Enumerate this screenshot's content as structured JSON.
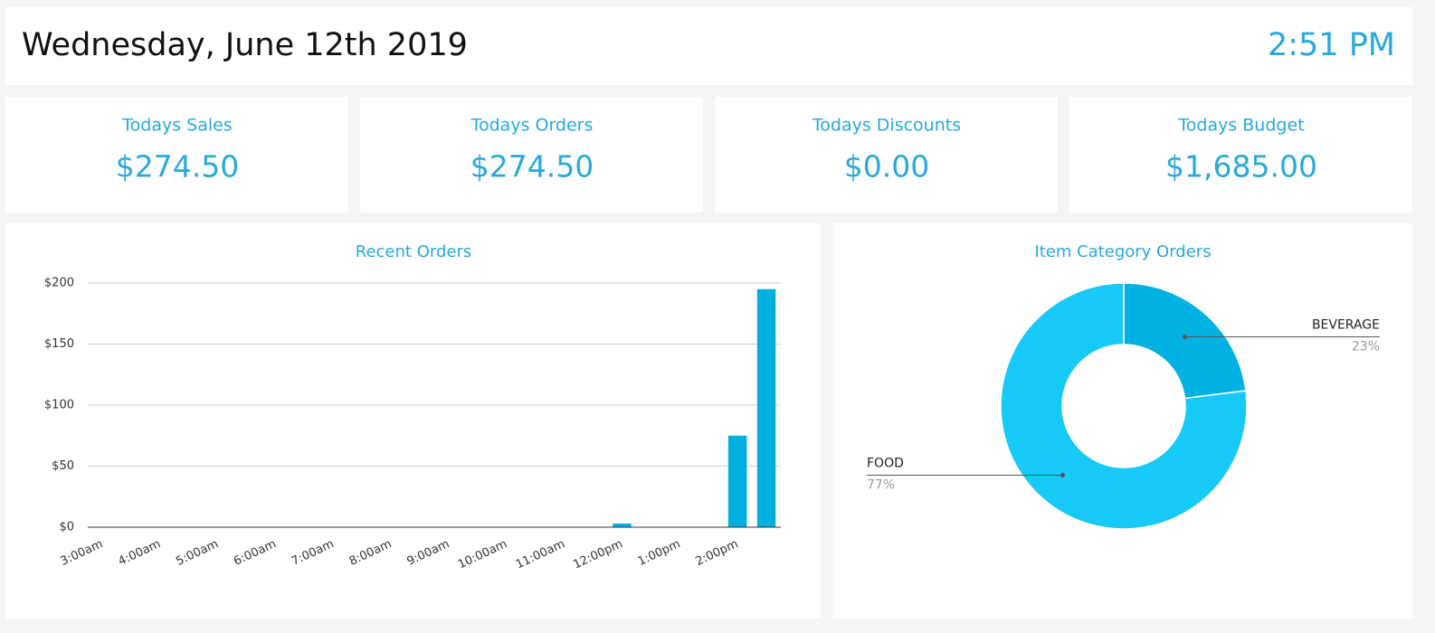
{
  "header": {
    "date": "Wednesday, June 12th 2019",
    "time": "2:51 PM"
  },
  "cards": [
    {
      "label": "Todays Sales",
      "value": "$274.50"
    },
    {
      "label": "Todays Orders",
      "value": "$274.50"
    },
    {
      "label": "Todays Discounts",
      "value": "$0.00"
    },
    {
      "label": "Todays Budget",
      "value": "$1,685.00"
    }
  ],
  "chart_data": [
    {
      "type": "bar",
      "title": "Recent Orders",
      "categories": [
        "3:00am",
        null,
        "4:00am",
        null,
        "5:00am",
        null,
        "6:00am",
        null,
        "7:00am",
        null,
        "8:00am",
        null,
        "9:00am",
        null,
        "10:00am",
        null,
        "11:00am",
        null,
        "12:00pm",
        null,
        "1:00pm",
        null,
        "2:00pm",
        null
      ],
      "values": [
        0,
        0,
        0,
        0,
        0,
        0,
        0,
        0,
        0,
        0,
        0,
        0,
        0,
        0,
        0,
        0,
        0,
        0,
        3,
        0,
        0,
        0,
        75,
        195
      ],
      "color": "#00aee0",
      "ylim": [
        0,
        200
      ],
      "yticks": [
        {
          "value": 0,
          "label": "$0"
        },
        {
          "value": 50,
          "label": "$50"
        },
        {
          "value": 100,
          "label": "$100"
        },
        {
          "value": 150,
          "label": "$150"
        },
        {
          "value": 200,
          "label": "$200"
        }
      ],
      "grid": true
    },
    {
      "type": "pie",
      "title": "Item Category Orders",
      "categories": [
        "BEVERAGE",
        "FOOD"
      ],
      "values": [
        23,
        77
      ],
      "value_labels": [
        "23%",
        "77%"
      ],
      "colors": [
        "#00b1e1",
        "#17c9f7"
      ],
      "donut": true
    }
  ]
}
